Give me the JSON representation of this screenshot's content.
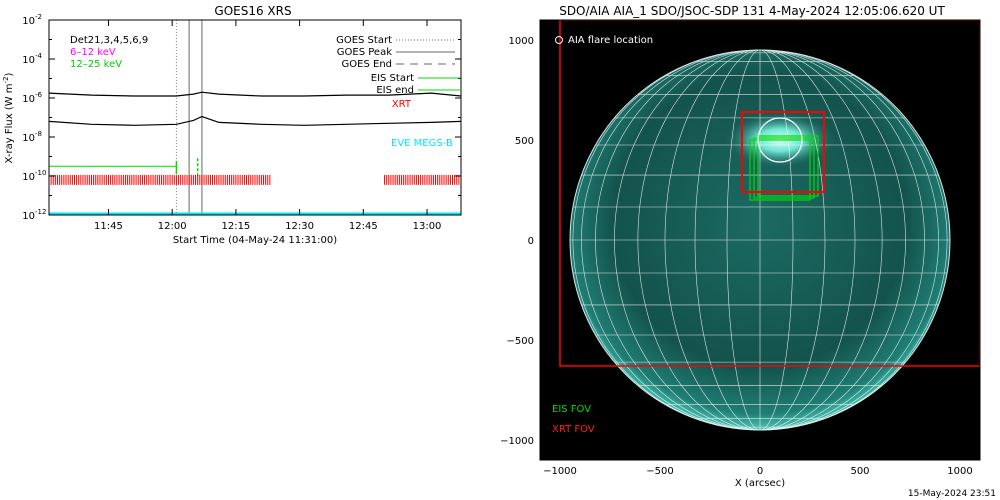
{
  "colors": {
    "goes_long": "#000000",
    "goes_short": "#000000",
    "low_energy": "#ff00ff",
    "high_energy": "#00cc00",
    "eis": "#00dd00",
    "xrt": "#ff0000",
    "eve": "#00e5ff",
    "sun_disk": "#0f4f4a",
    "sun_bright": "#6fe6d4",
    "grid": "#ffffff",
    "sky": "#000000"
  },
  "chart_data": [
    {
      "type": "line",
      "title": "GOES16 XRS",
      "ylabel": "X-ray Flux (W m",
      "ylabel_sup": "-2",
      "ylabel_close": ")",
      "xlabel": "Start Time (04-May-24 11:31:00)",
      "yscale": "log",
      "ylim_exp": [
        -12,
        -2
      ],
      "ytick_exps": [
        -12,
        -10,
        -8,
        -6,
        -4,
        -2
      ],
      "ytick_base": "10",
      "xlim_min": [
        0,
        97
      ],
      "xtick_min": [
        14,
        29,
        44,
        59,
        74,
        89
      ],
      "xtick_labels": [
        "11:45",
        "12:00",
        "12:15",
        "12:30",
        "12:45",
        "13:00"
      ],
      "legend_left": {
        "dets": "Det21,3,4,5,6,9",
        "low": "6–12 keV",
        "high": "12–25 keV"
      },
      "legend_right": {
        "goes_start": "GOES Start",
        "goes_peak": "GOES Peak",
        "goes_end": "GOES End",
        "eis_start": "EIS Start",
        "eis_end": "EIS end",
        "xrt": "XRT",
        "eve": "EVE MEGS-B"
      },
      "series": [
        {
          "key": "long",
          "x_min": [
            0,
            10,
            20,
            30,
            34,
            36,
            40,
            50,
            60,
            70,
            80,
            90,
            97
          ],
          "log_flux": [
            -5.75,
            -5.85,
            -5.9,
            -5.9,
            -5.8,
            -5.7,
            -5.8,
            -5.9,
            -5.9,
            -5.85,
            -5.85,
            -5.75,
            -5.9
          ]
        },
        {
          "key": "short",
          "x_min": [
            0,
            10,
            20,
            30,
            34,
            36,
            40,
            50,
            60,
            70,
            80,
            90,
            97
          ],
          "log_flux": [
            -7.2,
            -7.35,
            -7.4,
            -7.35,
            -7.15,
            -6.95,
            -7.25,
            -7.35,
            -7.4,
            -7.35,
            -7.3,
            -7.25,
            -7.2
          ]
        }
      ],
      "low_energy_baseline": -9.5,
      "goes_start_min": 30,
      "goes_peak_min": 33,
      "goes_end_min": 36,
      "eis_start_min": 30,
      "eis_end_min": 35,
      "xrt_bar_level": -10.2,
      "xrt_segments_min": [
        [
          0,
          52
        ],
        [
          79,
          97
        ]
      ]
    },
    {
      "type": "image",
      "title": "SDO/AIA AIA_1 SDO/JSOC-SDP 131  4-May-2024 12:05:06.620 UT",
      "xlabel": "X (arcsec)",
      "xlim": [
        -1100,
        1100
      ],
      "ylim": [
        -1100,
        1100
      ],
      "xticks": [
        -1000,
        -500,
        0,
        500,
        1000
      ],
      "xtick_labels": [
        "−1000",
        "−500",
        "0",
        "500",
        "1000"
      ],
      "yticks": [
        -1000,
        -500,
        0,
        500,
        1000
      ],
      "ytick_labels": [
        "−1000",
        "−500",
        "0",
        "500",
        "1000"
      ],
      "solar_radius_arcsec": 950,
      "flare_location_label": "AIA flare location",
      "flare_location": {
        "x": 100,
        "y": 500,
        "r": 110
      },
      "eis_fov_label": "EIS FOV",
      "xrt_fov_label": "XRT FOV",
      "xrt_outer_box": {
        "x0": -1000,
        "x1": 1100,
        "y0": -630,
        "y1": 1100
      },
      "xrt_inner_box": {
        "x0": -90,
        "x1": 320,
        "y0": 240,
        "y1": 640
      },
      "eis_boxes": [
        {
          "x0": -50,
          "x1": 250,
          "y0": 200,
          "y1": 500
        },
        {
          "x0": -30,
          "x1": 270,
          "y0": 210,
          "y1": 510
        },
        {
          "x0": -10,
          "x1": 290,
          "y0": 220,
          "y1": 520
        }
      ],
      "footer": "15-May-2024 23:51"
    }
  ]
}
